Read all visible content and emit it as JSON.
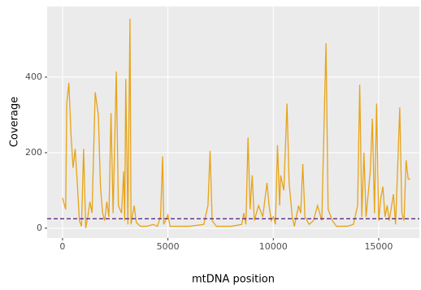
{
  "chart_data": {
    "type": "line",
    "x_label": "mtDNA position",
    "y_label": "Coverage",
    "xlim": [
      -730,
      16930
    ],
    "ylim": [
      -26,
      587
    ],
    "xticks": [
      0,
      5000,
      10000,
      15000
    ],
    "yticks": [
      0,
      200,
      400
    ],
    "grid": true,
    "reference_line": {
      "value": 25,
      "color": "#5b2a86"
    },
    "series": [
      {
        "color": "#e8a317",
        "x": [
          0,
          150,
          200,
          300,
          400,
          500,
          600,
          700,
          800,
          900,
          1000,
          1100,
          1200,
          1300,
          1400,
          1550,
          1700,
          1800,
          1900,
          2000,
          2100,
          2200,
          2300,
          2400,
          2550,
          2650,
          2800,
          2900,
          2950,
          3000,
          3100,
          3200,
          3250,
          3400,
          3500,
          3700,
          4000,
          4300,
          4500,
          4650,
          4750,
          4800,
          5000,
          5100,
          6000,
          6700,
          6900,
          7000,
          7100,
          7300,
          8000,
          8500,
          8600,
          8700,
          8800,
          8900,
          9000,
          9100,
          9300,
          9500,
          9700,
          9800,
          9900,
          10000,
          10100,
          10200,
          10300,
          10350,
          10500,
          10650,
          10750,
          10900,
          11000,
          11200,
          11300,
          11400,
          11500,
          11700,
          11900,
          12100,
          12300,
          12500,
          12600,
          12800,
          13000,
          13500,
          13800,
          14000,
          14100,
          14200,
          14300,
          14400,
          14600,
          14700,
          14800,
          14900,
          15000,
          15100,
          15200,
          15300,
          15400,
          15500,
          15700,
          15800,
          15900,
          16000,
          16100,
          16200,
          16300,
          16400,
          16500
        ],
        "values": [
          80,
          50,
          330,
          385,
          250,
          160,
          210,
          120,
          20,
          5,
          210,
          0,
          30,
          70,
          40,
          360,
          300,
          110,
          40,
          20,
          70,
          30,
          305,
          40,
          415,
          60,
          40,
          150,
          20,
          395,
          10,
          555,
          10,
          60,
          15,
          5,
          5,
          10,
          5,
          30,
          190,
          10,
          35,
          5,
          5,
          10,
          60,
          205,
          20,
          5,
          5,
          10,
          40,
          10,
          240,
          50,
          140,
          20,
          60,
          30,
          120,
          60,
          20,
          30,
          10,
          220,
          60,
          140,
          100,
          330,
          120,
          30,
          5,
          60,
          40,
          170,
          30,
          10,
          20,
          60,
          20,
          490,
          50,
          20,
          5,
          5,
          10,
          60,
          380,
          30,
          200,
          30,
          150,
          290,
          40,
          330,
          20,
          80,
          110,
          30,
          60,
          20,
          90,
          10,
          160,
          320,
          40,
          20,
          180,
          130,
          130
        ]
      }
    ]
  }
}
